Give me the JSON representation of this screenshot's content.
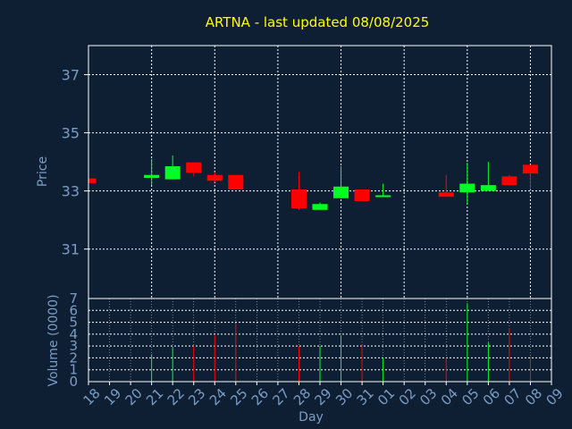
{
  "colors": {
    "background": "#0f1f33",
    "title": "#ffff00",
    "axis_text": "#7b9cc4",
    "frame": "#ffffff",
    "grid": "#ffffff",
    "up": "#00ff22",
    "down": "#ff0000"
  },
  "chart_data": [
    {
      "type": "candlestick",
      "title": "ARTNA - last updated 08/08/2025",
      "ylabel": "Price",
      "ylim": [
        29.3,
        38.0
      ],
      "yticks": [
        31,
        33,
        35,
        37
      ],
      "grid": true,
      "x_labels": [
        "18",
        "19",
        "20",
        "21",
        "22",
        "23",
        "24",
        "25",
        "26",
        "27",
        "28",
        "29",
        "30",
        "31",
        "01",
        "02",
        "03",
        "04",
        "05",
        "06",
        "07",
        "08",
        "09"
      ],
      "candles": [
        {
          "x": "18",
          "open": 33.43,
          "close": 33.27,
          "high": 33.43,
          "low": 33.27
        },
        {
          "x": "21",
          "open": 33.45,
          "close": 33.55,
          "high": 34.1,
          "low": 33.2
        },
        {
          "x": "22",
          "open": 33.4,
          "close": 33.85,
          "high": 34.22,
          "low": 33.4
        },
        {
          "x": "23",
          "open": 33.98,
          "close": 33.62,
          "high": 33.98,
          "low": 33.5
        },
        {
          "x": "24",
          "open": 33.55,
          "close": 33.35,
          "high": 33.65,
          "low": 33.3
        },
        {
          "x": "25",
          "open": 33.55,
          "close": 33.05,
          "high": 33.55,
          "low": 33.05
        },
        {
          "x": "28",
          "open": 33.05,
          "close": 32.4,
          "high": 33.65,
          "low": 32.35
        },
        {
          "x": "29",
          "open": 32.35,
          "close": 32.55,
          "high": 32.6,
          "low": 32.35
        },
        {
          "x": "30",
          "open": 32.75,
          "close": 33.15,
          "high": 33.85,
          "low": 32.75
        },
        {
          "x": "31",
          "open": 33.05,
          "close": 32.65,
          "high": 33.05,
          "low": 32.65
        },
        {
          "x": "01",
          "open": 32.8,
          "close": 32.85,
          "high": 33.25,
          "low": 32.8
        },
        {
          "x": "04",
          "open": 32.95,
          "close": 32.8,
          "high": 33.55,
          "low": 32.8
        },
        {
          "x": "05",
          "open": 32.95,
          "close": 33.25,
          "high": 33.97,
          "low": 32.55
        },
        {
          "x": "06",
          "open": 33.0,
          "close": 33.2,
          "high": 34.0,
          "low": 33.0
        },
        {
          "x": "07",
          "open": 33.5,
          "close": 33.2,
          "high": 33.55,
          "low": 33.2
        },
        {
          "x": "08",
          "open": 33.9,
          "close": 33.6,
          "high": 33.9,
          "low": 33.05
        }
      ]
    },
    {
      "type": "bar",
      "ylabel": "Volume (0000)",
      "xlabel": "Day",
      "ylim": [
        0,
        7
      ],
      "yticks": [
        0,
        1,
        2,
        3,
        4,
        5,
        6,
        7
      ],
      "grid": true,
      "volumes": [
        {
          "x": "18",
          "value": 0.1,
          "dir": "down"
        },
        {
          "x": "21",
          "value": 2.3,
          "dir": "up"
        },
        {
          "x": "22",
          "value": 2.9,
          "dir": "up"
        },
        {
          "x": "23",
          "value": 3.0,
          "dir": "down"
        },
        {
          "x": "24",
          "value": 3.9,
          "dir": "down"
        },
        {
          "x": "25",
          "value": 4.9,
          "dir": "down"
        },
        {
          "x": "28",
          "value": 3.0,
          "dir": "down"
        },
        {
          "x": "29",
          "value": 3.0,
          "dir": "up"
        },
        {
          "x": "30",
          "value": 3.9,
          "dir": "up"
        },
        {
          "x": "31",
          "value": 3.1,
          "dir": "down"
        },
        {
          "x": "01",
          "value": 2.0,
          "dir": "up"
        },
        {
          "x": "04",
          "value": 2.0,
          "dir": "down"
        },
        {
          "x": "05",
          "value": 6.6,
          "dir": "up"
        },
        {
          "x": "06",
          "value": 3.3,
          "dir": "up"
        },
        {
          "x": "07",
          "value": 4.5,
          "dir": "down"
        },
        {
          "x": "08",
          "value": 2.1,
          "dir": "down"
        }
      ]
    }
  ]
}
